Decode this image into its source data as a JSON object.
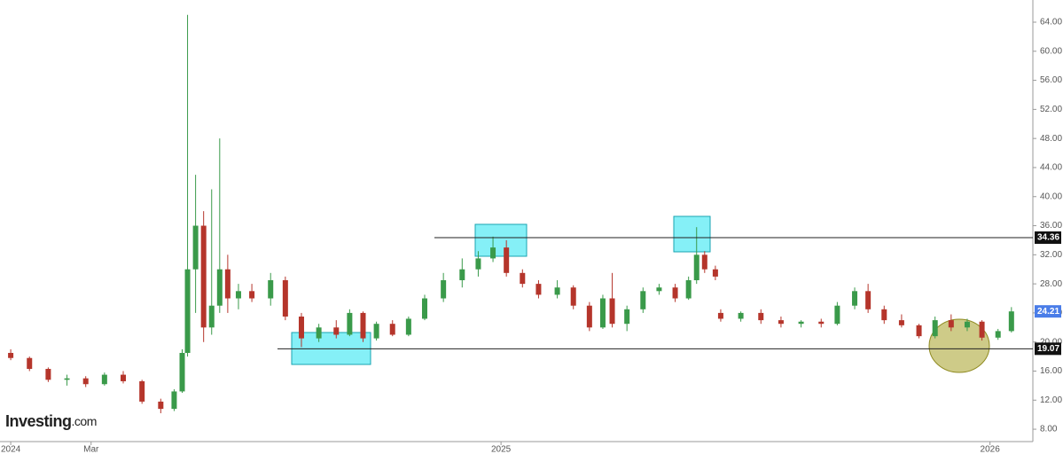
{
  "chart_data": {
    "type": "candlestick",
    "brand": "Investing",
    "brand_suffix": ".com",
    "up_color": "#3a9a4a",
    "down_color": "#b5352b",
    "xlim": [
      -8,
      763
    ],
    "xticks": [
      {
        "value": 0,
        "label": "2024"
      },
      {
        "value": 60,
        "label": "Mar"
      },
      {
        "value": 366,
        "label": "2025"
      },
      {
        "value": 731,
        "label": "2026"
      }
    ],
    "ylim": [
      6.3,
      67.05
    ],
    "yticks": [
      {
        "value": 8,
        "label": "8.00"
      },
      {
        "value": 12,
        "label": "12.00"
      },
      {
        "value": 16,
        "label": "16.00"
      },
      {
        "value": 20,
        "label": "20.00"
      },
      {
        "value": 24,
        "label": "24.00"
      },
      {
        "value": 28,
        "label": "28.00"
      },
      {
        "value": 32,
        "label": "32.00"
      },
      {
        "value": 36,
        "label": "36.00"
      },
      {
        "value": 40,
        "label": "40.00"
      },
      {
        "value": 44,
        "label": "44.00"
      },
      {
        "value": 48,
        "label": "48.00"
      },
      {
        "value": 52,
        "label": "52.00"
      },
      {
        "value": 56,
        "label": "56.00"
      },
      {
        "value": 60,
        "label": "60.00"
      },
      {
        "value": 64,
        "label": "64.00"
      }
    ],
    "horizontal_lines": [
      34.36,
      19.07
    ],
    "last_price": 24.21,
    "last_price_color": "#4a7de8",
    "x": [
      0,
      14,
      28,
      42,
      56,
      70,
      84,
      98,
      112,
      122,
      128,
      132,
      138,
      144,
      150,
      156,
      162,
      170,
      180,
      194,
      205,
      217,
      230,
      243,
      253,
      263,
      273,
      285,
      297,
      309,
      323,
      337,
      349,
      360,
      370,
      382,
      394,
      408,
      420,
      432,
      442,
      449,
      460,
      472,
      484,
      496,
      506,
      512,
      518,
      526,
      530,
      545,
      560,
      575,
      590,
      605,
      617,
      630,
      640,
      652,
      665,
      678,
      690,
      702,
      714,
      725,
      737,
      747
    ],
    "open": [
      18.5,
      17.8,
      16.3,
      14.8,
      15,
      14.2,
      15.5,
      14.6,
      11.8,
      10.8,
      13.2,
      18.5,
      30,
      36,
      22,
      25,
      30,
      26,
      27,
      26,
      28.5,
      23.5,
      20.5,
      22,
      21,
      24,
      20.5,
      22.5,
      21,
      23.2,
      26,
      28.5,
      30,
      31.5,
      33,
      29.5,
      28,
      26.5,
      27.5,
      25,
      22,
      26,
      22.5,
      24.5,
      27,
      27.5,
      26,
      28.5,
      32,
      30,
      24,
      23.2,
      24,
      23,
      22.5,
      22.8,
      22.5,
      25,
      27,
      24.5,
      23,
      22.3,
      20.8,
      23,
      22,
      22.8,
      20.6,
      21.5
    ],
    "high": [
      19,
      18,
      16.5,
      15.5,
      15.3,
      15.8,
      16,
      14.8,
      12.2,
      13.5,
      19,
      65,
      43,
      38,
      41,
      48,
      32,
      28,
      28,
      29.5,
      29,
      24,
      22.5,
      23,
      24.5,
      24.2,
      22.8,
      23,
      23.5,
      26.5,
      29.5,
      31.5,
      32.5,
      34.5,
      34,
      30,
      28.5,
      28.5,
      27.8,
      25.5,
      26.5,
      29.5,
      25,
      27.5,
      28,
      28,
      29,
      35.8,
      32.5,
      30.5,
      24.5,
      24.2,
      24.5,
      23.5,
      23,
      23.2,
      25.5,
      27.5,
      28,
      25,
      23.8,
      22.5,
      23.5,
      23.8,
      23.2,
      23,
      21.8,
      24.8
    ],
    "low": [
      17.5,
      16,
      14.5,
      14,
      13.8,
      14,
      14.3,
      11.5,
      10.2,
      10.5,
      13,
      18,
      24,
      20,
      21,
      24,
      24,
      24.5,
      25.5,
      25,
      23,
      19.3,
      20,
      20.5,
      20.8,
      20,
      20.2,
      20.8,
      20.8,
      23,
      25.5,
      27.5,
      29,
      31,
      29,
      27.5,
      26,
      26,
      24.5,
      21.5,
      21.8,
      22,
      21.5,
      24,
      26.5,
      25.5,
      25.8,
      28,
      29.5,
      28.5,
      22.8,
      22.8,
      22.5,
      22,
      22,
      22,
      22.3,
      24.5,
      24,
      22.5,
      22,
      20.5,
      20.5,
      21.5,
      21.5,
      20.2,
      20.3,
      21.3
    ],
    "close": [
      17.8,
      16.3,
      14.8,
      15,
      14.2,
      15.5,
      14.6,
      11.8,
      10.8,
      13.2,
      18.5,
      30,
      36,
      22,
      25,
      30,
      26,
      27,
      26,
      28.5,
      23.5,
      20.5,
      22,
      21,
      24,
      20.5,
      22.5,
      21,
      23.2,
      26,
      28.5,
      30,
      31.5,
      33,
      29.5,
      28,
      26.5,
      27.5,
      25,
      22,
      26,
      22.5,
      24.5,
      27,
      27.5,
      26,
      28.5,
      32,
      30,
      29,
      23.2,
      24,
      23,
      22.5,
      22.8,
      22.5,
      25,
      27,
      24.5,
      23,
      22.3,
      20.8,
      23,
      22,
      22.8,
      20.6,
      21.5,
      24.21
    ]
  }
}
